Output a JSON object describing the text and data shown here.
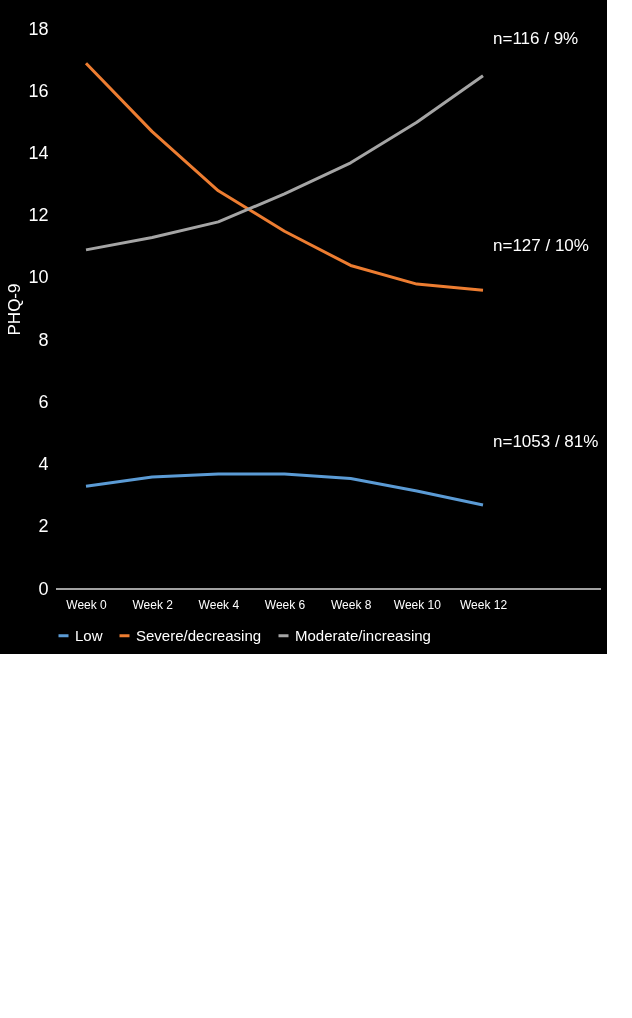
{
  "chart_data": {
    "type": "line",
    "ylabel": "PHQ-9",
    "categories": [
      "Week 0",
      "Week 2",
      "Week 4",
      "Week 6",
      "Week 8",
      "Week 10",
      "Week 12"
    ],
    "series": [
      {
        "name": "Low",
        "color": "#5b9bd5",
        "values": [
          3.3,
          3.6,
          3.7,
          3.7,
          3.55,
          3.15,
          2.7
        ]
      },
      {
        "name": "Severe/decreasing",
        "color": "#ed7d31",
        "values": [
          16.9,
          14.7,
          12.8,
          11.5,
          10.4,
          9.8,
          9.6
        ]
      },
      {
        "name": "Moderate/increasing",
        "color": "#a5a5a5",
        "values": [
          10.9,
          11.3,
          11.8,
          12.7,
          13.7,
          15.0,
          16.5
        ]
      }
    ],
    "ylim": [
      0,
      18
    ],
    "yticks": [
      0,
      2,
      4,
      6,
      8,
      10,
      12,
      14,
      16,
      18
    ],
    "annotations": [
      "n=1053 / 81%",
      "n=127 / 10%",
      "n=116 / 9%"
    ],
    "grid": false,
    "legend": "bottom",
    "marker": "none",
    "line_style": "solid"
  }
}
